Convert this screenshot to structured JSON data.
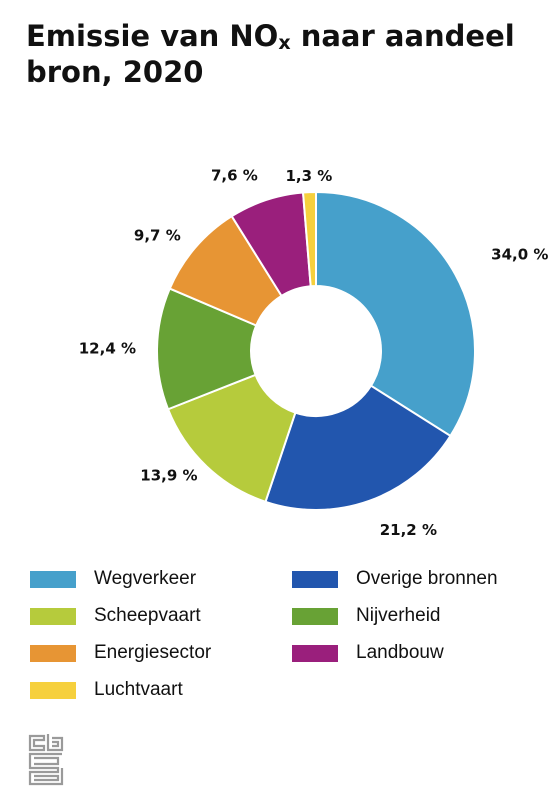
{
  "title": {
    "main": "Emissie van NO",
    "sub": "x",
    "rest": " naar aandeel bron, 2020"
  },
  "chart_data": {
    "type": "pie",
    "donut": true,
    "title": "Emissie van NOx naar aandeel bron, 2020",
    "unit": "%",
    "categories": [
      "Wegverkeer",
      "Overige bronnen",
      "Scheepvaart",
      "Nijverheid",
      "Energiesector",
      "Landbouw",
      "Luchtvaart"
    ],
    "values": [
      34.0,
      21.2,
      13.9,
      12.4,
      9.7,
      7.6,
      1.3
    ],
    "value_labels": [
      "34,0 %",
      "21,2 %",
      "13,9 %",
      "12,4 %",
      "9,7 %",
      "7,6 %",
      "1,3 %"
    ],
    "colors": [
      "#46a0cb",
      "#2256ae",
      "#b6cb3c",
      "#68a235",
      "#e79534",
      "#9a1f7c",
      "#f6d03d"
    ],
    "legend_position": "bottom"
  },
  "legend": {
    "items": [
      {
        "label": "Wegverkeer",
        "color": "#46a0cb"
      },
      {
        "label": "Overige bronnen",
        "color": "#2256ae"
      },
      {
        "label": "Scheepvaart",
        "color": "#b6cb3c"
      },
      {
        "label": "Nijverheid",
        "color": "#68a235"
      },
      {
        "label": "Energiesector",
        "color": "#e79534"
      },
      {
        "label": "Landbouw",
        "color": "#9a1f7c"
      },
      {
        "label": "Luchtvaart",
        "color": "#f6d03d"
      }
    ]
  },
  "logo": {
    "icon": "cbs-logo-icon",
    "text": "cbs"
  }
}
